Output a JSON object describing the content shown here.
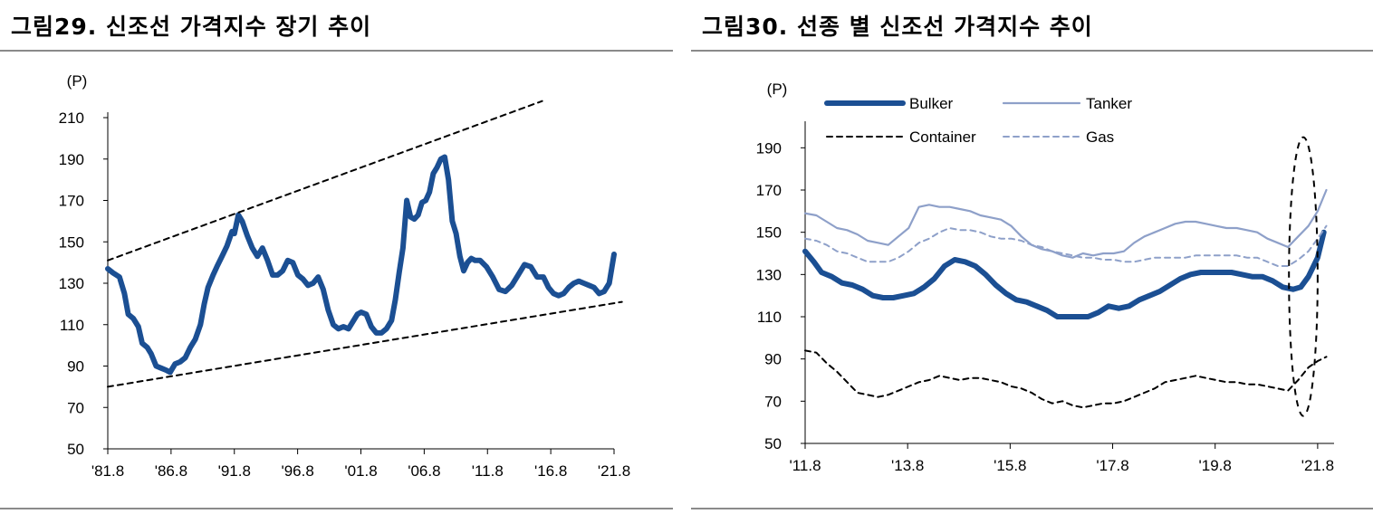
{
  "left": {
    "title": "그림29. 신조선 가격지수 장기 추이",
    "chart_data": {
      "type": "line",
      "unit_label": "(P)",
      "ylim": [
        50,
        210
      ],
      "yticks": [
        50,
        70,
        90,
        110,
        130,
        150,
        170,
        190,
        210
      ],
      "xlim": [
        1981.58,
        2021.58
      ],
      "xtick_values": [
        1981.58,
        1986.58,
        1991.58,
        1996.58,
        2001.58,
        2006.58,
        2011.58,
        2016.58,
        2021.58
      ],
      "xtick_labels": [
        "'81.8",
        "'86.8",
        "'91.8",
        "'96.8",
        "'01.8",
        "'06.8",
        "'11.8",
        "'16.8",
        "'21.8"
      ],
      "series": [
        {
          "color": "#1b4f93",
          "x": [
            1981.58,
            1982.0,
            1982.5,
            1982.9,
            1983.2,
            1983.6,
            1984.0,
            1984.3,
            1984.7,
            1985.0,
            1985.4,
            1985.8,
            1986.2,
            1986.5,
            1986.9,
            1987.3,
            1987.7,
            1988.1,
            1988.5,
            1988.9,
            1989.2,
            1989.5,
            1989.9,
            1990.2,
            1990.6,
            1991.0,
            1991.4,
            1991.58,
            1991.9,
            1992.2,
            1992.6,
            1993.0,
            1993.4,
            1993.8,
            1994.2,
            1994.6,
            1995.0,
            1995.4,
            1995.8,
            1996.2,
            1996.6,
            1997.0,
            1997.4,
            1997.8,
            1998.2,
            1998.6,
            1999.0,
            1999.4,
            1999.8,
            2000.2,
            2000.6,
            2001.0,
            2001.3,
            2001.6,
            2002.0,
            2002.4,
            2002.8,
            2003.2,
            2003.6,
            2004.0,
            2004.3,
            2004.6,
            2004.9,
            2005.2,
            2005.5,
            2005.8,
            2006.1,
            2006.4,
            2006.7,
            2007.0,
            2007.3,
            2007.6,
            2007.9,
            2008.2,
            2008.5,
            2008.8,
            2009.1,
            2009.4,
            2009.7,
            2010.0,
            2010.3,
            2010.6,
            2011.0,
            2011.5,
            2012.0,
            2012.5,
            2013.0,
            2013.5,
            2014.0,
            2014.5,
            2015.0,
            2015.5,
            2016.0,
            2016.4,
            2016.8,
            2017.2,
            2017.6,
            2018.0,
            2018.4,
            2018.8,
            2019.2,
            2019.6,
            2020.0,
            2020.4,
            2020.8,
            2021.2,
            2021.58
          ],
          "y": [
            137,
            135,
            133,
            125,
            115,
            113,
            109,
            101,
            99,
            96,
            90,
            89,
            88,
            87,
            91,
            92,
            94,
            99,
            103,
            110,
            120,
            128,
            134,
            138,
            143,
            148,
            155,
            154,
            163,
            160,
            153,
            147,
            143,
            147,
            141,
            134,
            134,
            136,
            141,
            140,
            134,
            132,
            129,
            130,
            133,
            127,
            117,
            110,
            108,
            109,
            108,
            112,
            115,
            116,
            115,
            109,
            106,
            106,
            108,
            112,
            122,
            135,
            147,
            170,
            162,
            161,
            163,
            169,
            170,
            174,
            183,
            186,
            190,
            191,
            180,
            160,
            154,
            143,
            136,
            140,
            142,
            141,
            141,
            138,
            133,
            127,
            126,
            129,
            134,
            139,
            138,
            133,
            133,
            128,
            125,
            124,
            125,
            128,
            130,
            131,
            130,
            129,
            128,
            125,
            126,
            130,
            144
          ]
        },
        {
          "style": "dashed",
          "color": "#000000",
          "x": [
            1981.58,
            2015.9
          ],
          "y": [
            141,
            218
          ]
        },
        {
          "style": "dashed",
          "color": "#000000",
          "x": [
            1981.58,
            2022.2
          ],
          "y": [
            80,
            121
          ]
        }
      ]
    }
  },
  "right": {
    "title": "그림30. 선종 별 신조선 가격지수 추이",
    "chart_data": {
      "type": "line",
      "unit_label": "(P)",
      "ylim": [
        50,
        200
      ],
      "yticks": [
        50,
        70,
        90,
        110,
        130,
        150,
        170,
        190
      ],
      "xlim": [
        2011.58,
        2021.9
      ],
      "xtick_values": [
        2011.58,
        2013.58,
        2015.58,
        2017.58,
        2019.58,
        2021.58
      ],
      "xtick_labels": [
        "'11.8",
        "'13.8",
        "'15.8",
        "'17.8",
        "'19.8",
        "'21.8"
      ],
      "legend_position": "top",
      "series": [
        {
          "name": "Bulker",
          "color": "#1b4f93",
          "style": "solid-thick",
          "x": [
            2011.58,
            2011.75,
            2011.9,
            2012.1,
            2012.3,
            2012.5,
            2012.7,
            2012.9,
            2013.1,
            2013.3,
            2013.5,
            2013.7,
            2013.9,
            2014.1,
            2014.3,
            2014.5,
            2014.7,
            2014.9,
            2015.1,
            2015.3,
            2015.5,
            2015.7,
            2015.9,
            2016.1,
            2016.3,
            2016.5,
            2016.7,
            2016.9,
            2017.1,
            2017.3,
            2017.5,
            2017.7,
            2017.9,
            2018.1,
            2018.3,
            2018.5,
            2018.7,
            2018.9,
            2019.1,
            2019.3,
            2019.5,
            2019.7,
            2019.9,
            2020.1,
            2020.3,
            2020.5,
            2020.7,
            2020.9,
            2021.1,
            2021.25,
            2021.4,
            2021.58,
            2021.7
          ],
          "y": [
            141,
            136,
            131,
            129,
            126,
            125,
            123,
            120,
            119,
            119,
            120,
            121,
            124,
            128,
            134,
            137,
            136,
            134,
            130,
            125,
            121,
            118,
            117,
            115,
            113,
            110,
            110,
            110,
            110,
            112,
            115,
            114,
            115,
            118,
            120,
            122,
            125,
            128,
            130,
            131,
            131,
            131,
            131,
            130,
            129,
            129,
            127,
            124,
            123,
            124,
            129,
            138,
            150
          ]
        },
        {
          "name": "Tanker",
          "color": "#8ea0c9",
          "style": "solid",
          "x": [
            2011.58,
            2011.8,
            2012.0,
            2012.2,
            2012.4,
            2012.6,
            2012.8,
            2013.0,
            2013.2,
            2013.4,
            2013.6,
            2013.8,
            2014.0,
            2014.2,
            2014.4,
            2014.6,
            2014.8,
            2015.0,
            2015.2,
            2015.4,
            2015.6,
            2015.8,
            2016.0,
            2016.2,
            2016.4,
            2016.6,
            2016.8,
            2017.0,
            2017.2,
            2017.4,
            2017.6,
            2017.8,
            2018.0,
            2018.2,
            2018.4,
            2018.6,
            2018.8,
            2019.0,
            2019.2,
            2019.4,
            2019.6,
            2019.8,
            2020.0,
            2020.2,
            2020.4,
            2020.6,
            2020.8,
            2021.0,
            2021.2,
            2021.4,
            2021.58,
            2021.75
          ],
          "y": [
            159,
            158,
            155,
            152,
            151,
            149,
            146,
            145,
            144,
            148,
            152,
            162,
            163,
            162,
            162,
            161,
            160,
            158,
            157,
            156,
            153,
            148,
            144,
            142,
            141,
            139,
            138,
            140,
            139,
            140,
            140,
            141,
            145,
            148,
            150,
            152,
            154,
            155,
            155,
            154,
            153,
            152,
            152,
            151,
            150,
            147,
            145,
            143,
            148,
            153,
            160,
            170
          ]
        },
        {
          "name": "Container",
          "color": "#000000",
          "style": "dashed",
          "x": [
            2011.58,
            2011.8,
            2012.0,
            2012.2,
            2012.4,
            2012.6,
            2012.8,
            2013.0,
            2013.2,
            2013.4,
            2013.6,
            2013.8,
            2014.0,
            2014.2,
            2014.4,
            2014.6,
            2014.8,
            2015.0,
            2015.2,
            2015.4,
            2015.6,
            2015.8,
            2016.0,
            2016.2,
            2016.4,
            2016.6,
            2016.8,
            2017.0,
            2017.2,
            2017.4,
            2017.6,
            2017.8,
            2018.0,
            2018.2,
            2018.4,
            2018.6,
            2018.8,
            2019.0,
            2019.2,
            2019.4,
            2019.6,
            2019.8,
            2020.0,
            2020.2,
            2020.4,
            2020.6,
            2020.8,
            2021.0,
            2021.2,
            2021.4,
            2021.58,
            2021.75
          ],
          "y": [
            94,
            93,
            88,
            84,
            79,
            74,
            73,
            72,
            73,
            75,
            77,
            79,
            80,
            82,
            81,
            80,
            81,
            81,
            80,
            79,
            77,
            76,
            74,
            71,
            69,
            70,
            68,
            67,
            68,
            69,
            69,
            70,
            72,
            74,
            76,
            79,
            80,
            81,
            82,
            81,
            80,
            79,
            79,
            78,
            78,
            77,
            76,
            75,
            80,
            86,
            89,
            91
          ]
        },
        {
          "name": "Gas",
          "color": "#8ea0c9",
          "style": "dashed",
          "x": [
            2011.58,
            2011.8,
            2012.0,
            2012.2,
            2012.4,
            2012.6,
            2012.8,
            2013.0,
            2013.2,
            2013.4,
            2013.6,
            2013.8,
            2014.0,
            2014.2,
            2014.4,
            2014.6,
            2014.8,
            2015.0,
            2015.2,
            2015.4,
            2015.6,
            2015.8,
            2016.0,
            2016.2,
            2016.4,
            2016.6,
            2016.8,
            2017.0,
            2017.2,
            2017.4,
            2017.6,
            2017.8,
            2018.0,
            2018.2,
            2018.4,
            2018.6,
            2018.8,
            2019.0,
            2019.2,
            2019.4,
            2019.6,
            2019.8,
            2020.0,
            2020.2,
            2020.4,
            2020.6,
            2020.8,
            2021.0,
            2021.2,
            2021.4,
            2021.58,
            2021.75
          ],
          "y": [
            147,
            146,
            144,
            141,
            140,
            138,
            136,
            136,
            136,
            138,
            141,
            145,
            147,
            150,
            152,
            151,
            151,
            150,
            148,
            147,
            147,
            146,
            144,
            143,
            141,
            140,
            139,
            138,
            138,
            137,
            137,
            136,
            136,
            137,
            138,
            138,
            138,
            138,
            139,
            139,
            139,
            139,
            139,
            138,
            138,
            136,
            134,
            134,
            137,
            141,
            147,
            153
          ]
        }
      ],
      "annotation": {
        "type": "dashed-ellipse",
        "x_center": 2021.3,
        "y_center": 129,
        "x_radius": 0.28,
        "y_radius": 66
      }
    }
  }
}
